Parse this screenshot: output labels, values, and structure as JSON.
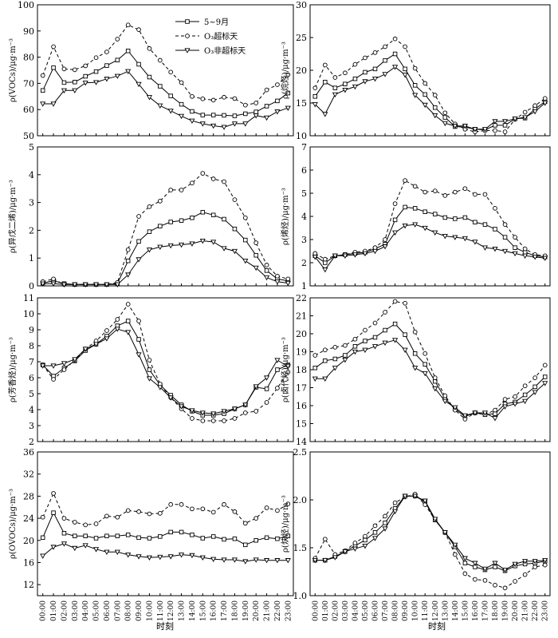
{
  "x_axis": {
    "label": "时刻",
    "ticks": [
      "00:00",
      "01:00",
      "02:00",
      "03:00",
      "04:00",
      "05:00",
      "06:00",
      "07:00",
      "08:00",
      "09:00",
      "10:00",
      "11:00",
      "12:00",
      "13:00",
      "14:00",
      "15:00",
      "16:00",
      "17:00",
      "18:00",
      "19:00",
      "20:00",
      "21:00",
      "22:00",
      "23:00"
    ]
  },
  "legend": [
    "5~9月",
    "O₃超标天",
    "O₃非超标天"
  ],
  "chart_data": [
    {
      "type": "line",
      "ylabel": "ρ(VOCs)/μg·m⁻³",
      "ylim": [
        50,
        100
      ],
      "yticks": [
        50,
        60,
        70,
        80,
        90,
        100
      ],
      "legend_position": "top-right",
      "series": [
        {
          "name": "5~9月",
          "values": [
            67.3,
            76,
            70.3,
            70.5,
            72.7,
            74.5,
            76.8,
            78.9,
            82.4,
            77.3,
            72.4,
            68.9,
            65.2,
            62,
            59.3,
            57.9,
            57.9,
            57.8,
            57.6,
            58.4,
            59.1,
            61.3,
            63.3,
            66.3
          ]
        },
        {
          "name": "O₃超标天",
          "values": [
            73,
            84,
            75.5,
            75.2,
            76.7,
            79.8,
            82,
            86.9,
            92.3,
            90.5,
            83.3,
            78.8,
            74.3,
            70.3,
            65,
            64.1,
            63.6,
            64.7,
            64.2,
            61.7,
            62.5,
            67.5,
            69.5,
            73.3
          ]
        },
        {
          "name": "O₃非超标天",
          "values": [
            62.2,
            62.2,
            67.3,
            67.3,
            70.2,
            70.4,
            71.7,
            72.8,
            74.6,
            69.7,
            64.7,
            61.5,
            59.5,
            57.5,
            55.7,
            54.6,
            53.8,
            53.3,
            54.6,
            54.6,
            57.7,
            56.9,
            59.2,
            60.6
          ]
        }
      ]
    },
    {
      "type": "line",
      "ylabel": "ρ(烷烃)/μg·m⁻³",
      "ylim": [
        10,
        30
      ],
      "yticks": [
        10,
        15,
        20,
        25,
        30
      ],
      "series": [
        {
          "name": "5~9月",
          "values": [
            16,
            18.2,
            17.3,
            17.9,
            18.7,
            19.7,
            20.2,
            21.5,
            22.5,
            20.2,
            17.7,
            16.3,
            14.3,
            12.8,
            11.4,
            11.3,
            11,
            10.9,
            11.6,
            11.6,
            12.6,
            12.7,
            14.1,
            15.2
          ]
        },
        {
          "name": "O₃超标天",
          "values": [
            17.3,
            20.8,
            18.9,
            19.6,
            20.9,
            21.9,
            22.7,
            23.6,
            24.8,
            23.6,
            20.3,
            18,
            16.2,
            13.5,
            11.8,
            11,
            10.6,
            10.8,
            10.8,
            10.6,
            12.5,
            13.6,
            14.6,
            15.7
          ]
        },
        {
          "name": "O₃非超标天",
          "values": [
            14.8,
            13.3,
            16.3,
            17,
            17.5,
            18.3,
            18.7,
            19.4,
            20.5,
            19.3,
            16.2,
            14.7,
            13.1,
            11.9,
            11.5,
            11.5,
            11,
            11,
            12.2,
            12.2,
            12.6,
            12.8,
            13.7,
            15
          ]
        }
      ]
    },
    {
      "type": "line",
      "ylabel": "ρ(异戊二烯)/μg·m⁻³",
      "ylim": [
        0,
        5
      ],
      "yticks": [
        0,
        1,
        2,
        3,
        4,
        5
      ],
      "series": [
        {
          "name": "5~9月",
          "values": [
            0.1,
            0.18,
            0.08,
            0.05,
            0.05,
            0.05,
            0.05,
            0.08,
            0.9,
            1.6,
            1.95,
            2.15,
            2.3,
            2.35,
            2.45,
            2.65,
            2.55,
            2.4,
            2.05,
            1.65,
            1.1,
            0.55,
            0.25,
            0.18
          ]
        },
        {
          "name": "O₃超标天",
          "values": [
            0.15,
            0.25,
            0.05,
            0.05,
            0.05,
            0.05,
            0.05,
            0.12,
            1.3,
            2.5,
            2.85,
            3.05,
            3.45,
            3.45,
            3.7,
            4.05,
            3.85,
            3.75,
            3.1,
            2.45,
            1.55,
            0.75,
            0.35,
            0.25
          ]
        },
        {
          "name": "O₃非超标天",
          "values": [
            0.08,
            0.08,
            0.05,
            0.05,
            0.05,
            0.05,
            0.05,
            0.05,
            0.4,
            0.95,
            1.3,
            1.4,
            1.45,
            1.48,
            1.52,
            1.62,
            1.58,
            1.35,
            1.25,
            0.9,
            0.65,
            0.3,
            0.15,
            0.1
          ]
        }
      ]
    },
    {
      "type": "line",
      "ylabel": "ρ(烯烃)/μg·m⁻³",
      "ylim": [
        1,
        7
      ],
      "yticks": [
        1,
        2,
        3,
        4,
        5,
        6,
        7
      ],
      "series": [
        {
          "name": "5~9月",
          "values": [
            2.3,
            2,
            2.3,
            2.35,
            2.4,
            2.45,
            2.6,
            2.8,
            3.85,
            4.4,
            4.35,
            4.2,
            4.1,
            3.95,
            3.9,
            3.95,
            3.75,
            3.65,
            3.45,
            3.1,
            2.65,
            2.45,
            2.3,
            2.25
          ]
        },
        {
          "name": "O₃超标天",
          "values": [
            2.4,
            2.15,
            2.3,
            2.35,
            2.45,
            2.5,
            2.65,
            3,
            4.55,
            5.55,
            5.3,
            5.05,
            5.1,
            4.9,
            5.05,
            5.2,
            4.95,
            4.95,
            4.35,
            3.65,
            3.1,
            2.6,
            2.35,
            2.3
          ]
        },
        {
          "name": "O₃非超标天",
          "values": [
            2.25,
            1.7,
            2.3,
            2.3,
            2.35,
            2.4,
            2.5,
            2.7,
            3.3,
            3.6,
            3.65,
            3.5,
            3.3,
            3.15,
            3.1,
            3.05,
            2.9,
            2.65,
            2.6,
            2.5,
            2.4,
            2.3,
            2.25,
            2.2
          ]
        }
      ]
    },
    {
      "type": "line",
      "ylabel": "ρ(芳香烃)/μg·m⁻³",
      "ylim": [
        2,
        11
      ],
      "yticks": [
        2,
        3,
        4,
        5,
        6,
        7,
        8,
        9,
        10,
        11
      ],
      "series": [
        {
          "name": "5~9月",
          "values": [
            6.8,
            6.1,
            6.6,
            7.05,
            7.7,
            8.1,
            8.6,
            9.25,
            9.55,
            8.4,
            6.5,
            5.55,
            4.9,
            4.3,
            3.9,
            3.65,
            3.65,
            3.75,
            4.05,
            4.3,
            5.4,
            5.3,
            6.5,
            6.8
          ]
        },
        {
          "name": "O₃超标天",
          "values": [
            6.8,
            5.9,
            6.5,
            7.1,
            7.8,
            8.3,
            8.95,
            9.65,
            10.6,
            9.55,
            7.1,
            5.6,
            4.75,
            4.05,
            3.45,
            3.3,
            3.3,
            3.3,
            3.45,
            3.8,
            3.9,
            4.45,
            5.35,
            6.35
          ]
        },
        {
          "name": "O₃非超标天",
          "values": [
            6.75,
            6.75,
            6.9,
            7.15,
            7.8,
            8.1,
            8.45,
            9.05,
            8.85,
            7.45,
            5.95,
            5.4,
            4.75,
            4.2,
            3.95,
            3.8,
            3.75,
            3.9,
            4.05,
            4.3,
            5.45,
            6,
            7.1,
            6.7
          ]
        }
      ]
    },
    {
      "type": "line",
      "ylabel": "ρ(卤代烃)/μg·m⁻³",
      "ylim": [
        14,
        22
      ],
      "yticks": [
        14,
        15,
        16,
        17,
        18,
        19,
        20,
        21,
        22
      ],
      "series": [
        {
          "name": "5~9月",
          "values": [
            18.1,
            18.5,
            18.6,
            18.8,
            19.3,
            19.6,
            19.8,
            20.2,
            20.55,
            19.95,
            18.9,
            18.3,
            17.35,
            16.4,
            15.8,
            15.4,
            15.6,
            15.5,
            15.55,
            16.1,
            16.2,
            16.6,
            17.05,
            17.6
          ]
        },
        {
          "name": "O₃超标天",
          "values": [
            18.8,
            19.1,
            19.25,
            19.35,
            19.7,
            20.2,
            20.6,
            21.2,
            21.8,
            21.7,
            20.1,
            18.9,
            17.55,
            16.55,
            15.75,
            15.25,
            15.6,
            15.5,
            15.75,
            16.35,
            16.5,
            17.1,
            17.55,
            18.25
          ]
        },
        {
          "name": "O₃非超标天",
          "values": [
            17.5,
            17.5,
            18.1,
            18.55,
            19,
            19.1,
            19.3,
            19.5,
            19.65,
            19.1,
            18.1,
            17.8,
            16.95,
            16.25,
            15.9,
            15.45,
            15.6,
            15.6,
            15.3,
            15.95,
            16.1,
            16.25,
            16.75,
            17.25
          ]
        }
      ]
    },
    {
      "type": "line",
      "ylabel": "ρ(OVOCs)/μg·m⁻³",
      "ylim": [
        10,
        36
      ],
      "yticks": [
        12,
        16,
        20,
        24,
        28,
        32,
        36
      ],
      "series": [
        {
          "name": "5~9月",
          "values": [
            20.5,
            25,
            21.3,
            20.8,
            20.8,
            20.4,
            20.8,
            20.8,
            21,
            20.5,
            20.4,
            20.7,
            21.5,
            21.5,
            21,
            20.4,
            20.7,
            20.2,
            20.3,
            19.2,
            20,
            20.5,
            20.3,
            20.8
          ]
        },
        {
          "name": "O₃超标天",
          "values": [
            24.2,
            28.5,
            24,
            23.3,
            22.8,
            23,
            24.4,
            24.2,
            25.4,
            25.2,
            24.8,
            24.9,
            26.5,
            26.5,
            25.7,
            25.7,
            25.1,
            26.5,
            25.2,
            23.1,
            24,
            25.9,
            25.4,
            26.6
          ]
        },
        {
          "name": "O₃非超标天",
          "values": [
            17.2,
            18.8,
            19.4,
            18.6,
            19.1,
            18.4,
            17.9,
            17.9,
            17.4,
            17.1,
            16.9,
            17,
            17.1,
            17.4,
            17.3,
            16.9,
            16.6,
            16.5,
            16.5,
            16.2,
            16.5,
            16.4,
            16.4,
            16.4
          ]
        }
      ]
    },
    {
      "type": "line",
      "ylabel": "ρ(炔烃)/μg·m⁻³",
      "ylim": [
        1,
        2.5
      ],
      "yticks": [
        1.0,
        1.5,
        2.0,
        2.5
      ],
      "series": [
        {
          "name": "5~9月",
          "values": [
            1.37,
            1.37,
            1.41,
            1.46,
            1.52,
            1.58,
            1.66,
            1.76,
            1.91,
            2.04,
            2.04,
            1.98,
            1.79,
            1.66,
            1.51,
            1.34,
            1.3,
            1.27,
            1.3,
            1.26,
            1.31,
            1.33,
            1.34,
            1.36
          ]
        },
        {
          "name": "O₃超标天",
          "values": [
            1.39,
            1.59,
            1.43,
            1.47,
            1.55,
            1.62,
            1.73,
            1.83,
            1.97,
            2.03,
            2.06,
            1.95,
            1.79,
            1.66,
            1.43,
            1.23,
            1.17,
            1.16,
            1.11,
            1.08,
            1.15,
            1.22,
            1.3,
            1.32
          ]
        },
        {
          "name": "O₃非超标天",
          "values": [
            1.37,
            1.37,
            1.4,
            1.46,
            1.49,
            1.52,
            1.6,
            1.7,
            1.88,
            2.04,
            2.04,
            1.99,
            1.8,
            1.66,
            1.53,
            1.39,
            1.34,
            1.28,
            1.34,
            1.27,
            1.33,
            1.36,
            1.36,
            1.37
          ]
        }
      ]
    }
  ]
}
